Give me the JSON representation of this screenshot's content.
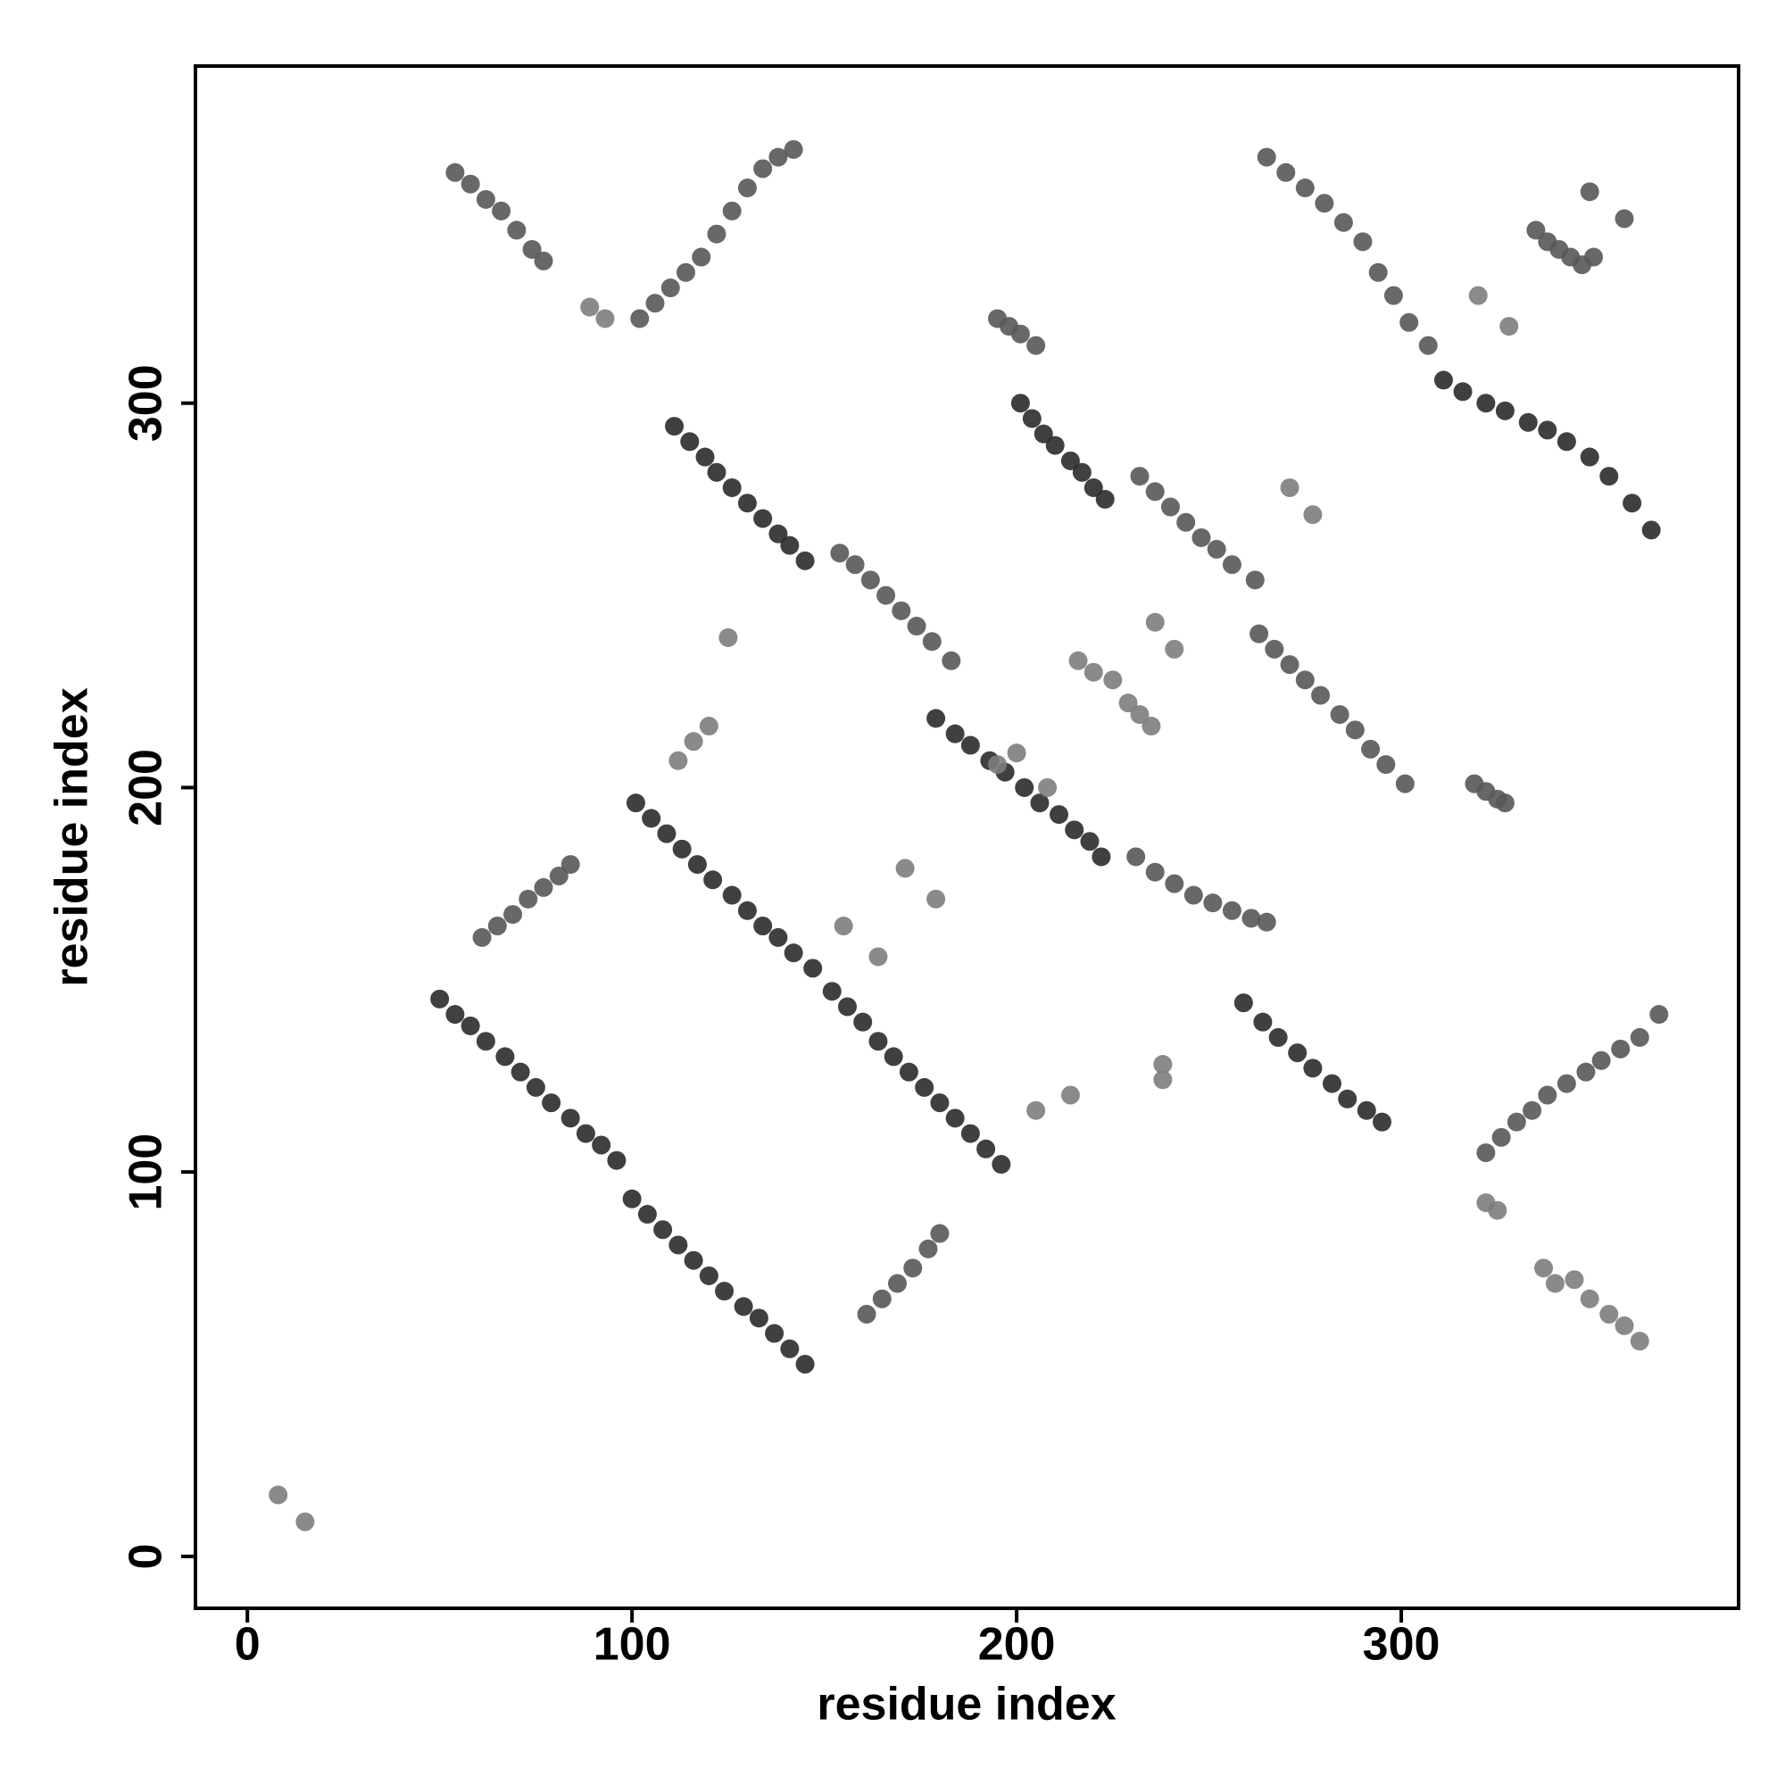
{
  "chart_data": {
    "type": "scatter",
    "xlabel": "residue index",
    "ylabel": "residue index",
    "xlim": [
      -13.5,
      387.7
    ],
    "ylim": [
      -13.5,
      387.7
    ],
    "xticks": [
      0,
      100,
      200,
      300
    ],
    "yticks": [
      0,
      100,
      200,
      300
    ],
    "series": [
      {
        "color": "#2b2b2b",
        "x": [
          50,
          54,
          58,
          62,
          67,
          71,
          75,
          79,
          84,
          88,
          92,
          96,
          100,
          104,
          108,
          112,
          116,
          120,
          124,
          129,
          133,
          137,
          141,
          145,
          101,
          105,
          109,
          113,
          117,
          121,
          126,
          130,
          134,
          138,
          142,
          147,
          152,
          156,
          160,
          164,
          168,
          172,
          176,
          180,
          184,
          188,
          192,
          196,
          111,
          115,
          119,
          122,
          126,
          130,
          134,
          138,
          141,
          145,
          179,
          184,
          188,
          193,
          197,
          202,
          206,
          211,
          215,
          219,
          222,
          201,
          204,
          207,
          210,
          214,
          217,
          220,
          223,
          259,
          264,
          268,
          273,
          277,
          282,
          286,
          291,
          295,
          311,
          316,
          322,
          327,
          333,
          338,
          343,
          349,
          354,
          360,
          365
        ],
        "values": [
          145,
          141,
          138,
          134,
          130,
          126,
          122,
          118,
          114,
          110,
          107,
          103,
          93,
          89,
          85,
          81,
          77,
          73,
          69,
          65,
          62,
          58,
          54,
          50,
          196,
          192,
          188,
          184,
          180,
          176,
          172,
          168,
          164,
          161,
          157,
          153,
          147,
          143,
          139,
          134,
          130,
          126,
          122,
          118,
          114,
          110,
          106,
          102,
          294,
          290,
          286,
          282,
          278,
          274,
          270,
          266,
          263,
          259,
          218,
          214,
          211,
          207,
          204,
          200,
          196,
          193,
          189,
          186,
          182,
          300,
          296,
          292,
          289,
          285,
          282,
          278,
          275,
          144,
          139,
          135,
          131,
          127,
          123,
          119,
          116,
          113,
          306,
          303,
          300,
          298,
          295,
          293,
          290,
          286,
          281,
          274,
          267
        ]
      },
      {
        "color": "#585858",
        "x": [
          161,
          165,
          169,
          173,
          177,
          180,
          61,
          65,
          69,
          73,
          77,
          81,
          84,
          102,
          106,
          110,
          114,
          118,
          122,
          126,
          130,
          134,
          138,
          142,
          54,
          58,
          62,
          66,
          70,
          74,
          77,
          154,
          158,
          162,
          166,
          170,
          174,
          178,
          183,
          231,
          236,
          241,
          246,
          251,
          256,
          261,
          265,
          232,
          236,
          240,
          244,
          248,
          252,
          256,
          262,
          263,
          267,
          271,
          275,
          279,
          284,
          288,
          292,
          296,
          301,
          195,
          198,
          201,
          205,
          265,
          270,
          275,
          280,
          285,
          290,
          294,
          298,
          302,
          307,
          322,
          326,
          330,
          334,
          338,
          343,
          348,
          352,
          357,
          362,
          367,
          335,
          338,
          341,
          344,
          347,
          350,
          349,
          358,
          319,
          322,
          325,
          327
        ],
        "values": [
          63,
          67,
          71,
          75,
          80,
          84,
          161,
          164,
          167,
          171,
          174,
          177,
          180,
          322,
          326,
          330,
          334,
          338,
          344,
          350,
          356,
          361,
          364,
          366,
          360,
          357,
          353,
          350,
          345,
          340,
          337,
          261,
          258,
          254,
          250,
          246,
          242,
          238,
          233,
          182,
          178,
          175,
          172,
          170,
          168,
          166,
          165,
          281,
          277,
          273,
          269,
          265,
          262,
          258,
          254,
          240,
          236,
          232,
          228,
          224,
          219,
          215,
          210,
          206,
          201,
          322,
          320,
          318,
          315,
          364,
          360,
          356,
          352,
          347,
          342,
          334,
          328,
          321,
          315,
          105,
          109,
          113,
          116,
          120,
          123,
          126,
          129,
          132,
          135,
          141,
          345,
          342,
          340,
          338,
          336,
          338,
          355,
          348,
          201,
          199,
          197,
          196
        ]
      },
      {
        "color": "#7d7d7d",
        "x": [
          112,
          116,
          120,
          89,
          93,
          322,
          325,
          337,
          340,
          345,
          349,
          354,
          358,
          362,
          8,
          15,
          271,
          277,
          171,
          179,
          155,
          164,
          238,
          238,
          125,
          205,
          214,
          320,
          328,
          236,
          241,
          216,
          220,
          225,
          229,
          232,
          235,
          195,
          200,
          208
        ],
        "values": [
          207,
          212,
          216,
          325,
          322,
          92,
          90,
          75,
          71,
          72,
          67,
          63,
          60,
          56,
          16,
          9,
          278,
          271,
          179,
          171,
          164,
          156,
          128,
          124,
          239,
          116,
          120,
          328,
          320,
          243,
          236,
          233,
          230,
          228,
          222,
          219,
          216,
          206,
          209,
          200
        ]
      }
    ]
  }
}
